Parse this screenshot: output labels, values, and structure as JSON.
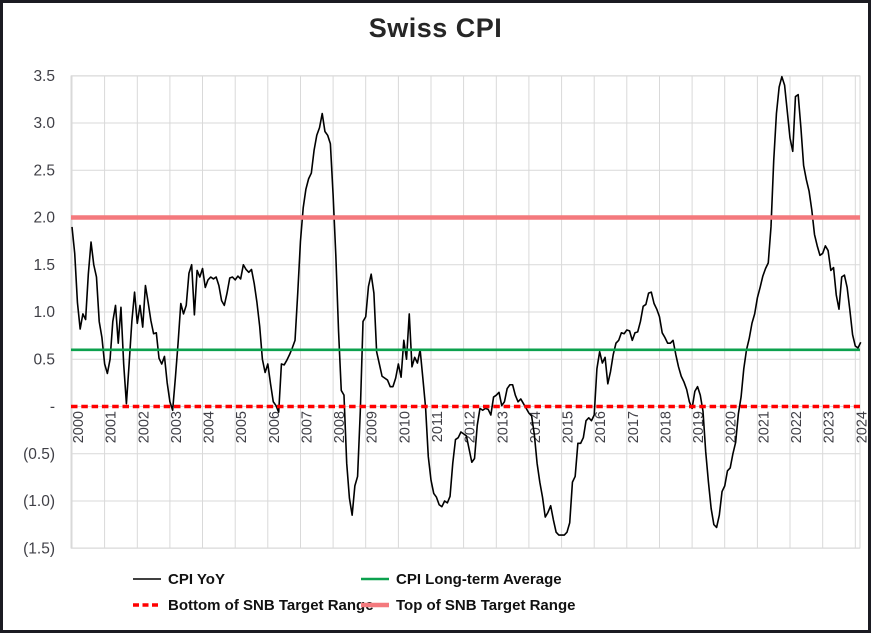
{
  "title": "Swiss CPI",
  "chart_data": {
    "type": "line",
    "title": "Swiss CPI",
    "grid": true,
    "colors": {
      "series": "#000000",
      "long_term_average": "#0CA14E",
      "snb_bottom": "#FF0000",
      "snb_top": "#F4797D",
      "gridline": "#D9D9D9",
      "axis_text": "#3F3F46",
      "title_text": "#262626",
      "frame_border": "#1B1B22"
    },
    "y_axis": {
      "min": -1.5,
      "max": 3.5,
      "step": 0.5,
      "tick_labels": [
        "3.5",
        "3.0",
        "2.5",
        "2.0",
        "1.5",
        "1.0",
        "0.5",
        "-",
        "(0.5)",
        "(1.0)",
        "(1.5)"
      ],
      "tick_values": [
        3.5,
        3.0,
        2.5,
        2.0,
        1.5,
        1.0,
        0.5,
        0.0,
        -0.5,
        -1.0,
        -1.5
      ]
    },
    "x_axis": {
      "tick_labels": [
        "2000",
        "2001",
        "2002",
        "2003",
        "2004",
        "2005",
        "2006",
        "2007",
        "2008",
        "2009",
        "2010",
        "2011",
        "2012",
        "2013",
        "2014",
        "2015",
        "2016",
        "2017",
        "2018",
        "2019",
        "2020",
        "2021",
        "2022",
        "2023",
        "2024"
      ],
      "points_per_tick": 12
    },
    "reference_lines": [
      {
        "name": "CPI Long-term Average",
        "value": 0.6,
        "color": "#0CA14E",
        "style": "solid",
        "width": 2.6
      },
      {
        "name": "Top of SNB Target Range",
        "value": 2.0,
        "color": "#F4797D",
        "style": "solid",
        "width": 4.4
      },
      {
        "name": "Bottom of SNB Target Range",
        "value": 0.0,
        "color": "#FF0000",
        "style": "dashed",
        "width": 3.6
      }
    ],
    "series": [
      {
        "name": "CPI YoY",
        "color": "#000000",
        "width": 1.6,
        "start_year": 2000,
        "frequency": "monthly",
        "values": [
          1.9,
          1.62,
          1.1,
          0.82,
          0.98,
          0.92,
          1.4,
          1.74,
          1.5,
          1.37,
          0.9,
          0.73,
          0.45,
          0.35,
          0.5,
          0.9,
          1.07,
          0.67,
          1.05,
          0.45,
          0.03,
          0.45,
          0.9,
          1.21,
          0.88,
          1.07,
          0.84,
          1.28,
          1.1,
          0.91,
          0.77,
          0.78,
          0.51,
          0.45,
          0.53,
          0.25,
          0.05,
          -0.04,
          0.3,
          0.67,
          1.09,
          0.98,
          1.07,
          1.41,
          1.5,
          0.97,
          1.44,
          1.37,
          1.46,
          1.26,
          1.34,
          1.37,
          1.35,
          1.37,
          1.28,
          1.12,
          1.07,
          1.2,
          1.36,
          1.37,
          1.34,
          1.38,
          1.35,
          1.5,
          1.45,
          1.42,
          1.45,
          1.3,
          1.1,
          0.85,
          0.5,
          0.36,
          0.45,
          0.24,
          0.05,
          0.01,
          -0.06,
          0.45,
          0.44,
          0.49,
          0.55,
          0.62,
          0.7,
          1.2,
          1.75,
          2.1,
          2.3,
          2.41,
          2.47,
          2.71,
          2.87,
          2.95,
          3.1,
          2.91,
          2.87,
          2.78,
          2.24,
          1.6,
          0.8,
          0.17,
          0.12,
          -0.6,
          -0.97,
          -1.15,
          -0.84,
          -0.74,
          -0.05,
          0.9,
          0.95,
          1.27,
          1.4,
          1.2,
          0.58,
          0.45,
          0.32,
          0.3,
          0.28,
          0.21,
          0.21,
          0.3,
          0.45,
          0.31,
          0.7,
          0.5,
          0.98,
          0.42,
          0.52,
          0.46,
          0.6,
          0.3,
          -0.01,
          -0.53,
          -0.78,
          -0.92,
          -0.96,
          -1.04,
          -1.06,
          -1.0,
          -1.02,
          -0.95,
          -0.6,
          -0.35,
          -0.33,
          -0.27,
          -0.29,
          -0.31,
          -0.45,
          -0.59,
          -0.55,
          -0.2,
          -0.02,
          -0.04,
          -0.02,
          -0.03,
          -0.09,
          0.1,
          0.12,
          0.15,
          0.01,
          0.05,
          0.19,
          0.23,
          0.23,
          0.12,
          0.05,
          0.08,
          0.03,
          -0.02,
          -0.07,
          -0.1,
          -0.3,
          -0.6,
          -0.8,
          -0.96,
          -1.17,
          -1.12,
          -1.05,
          -1.2,
          -1.33,
          -1.36,
          -1.36,
          -1.36,
          -1.33,
          -1.23,
          -0.8,
          -0.74,
          -0.39,
          -0.39,
          -0.33,
          -0.15,
          -0.12,
          -0.15,
          -0.09,
          0.4,
          0.58,
          0.46,
          0.52,
          0.24,
          0.37,
          0.55,
          0.67,
          0.7,
          0.78,
          0.77,
          0.81,
          0.8,
          0.7,
          0.78,
          0.79,
          0.9,
          1.06,
          1.08,
          1.2,
          1.21,
          1.09,
          1.03,
          0.95,
          0.78,
          0.73,
          0.67,
          0.67,
          0.7,
          0.55,
          0.42,
          0.32,
          0.26,
          0.18,
          0.05,
          -0.02,
          0.16,
          0.21,
          0.12,
          -0.05,
          -0.48,
          -0.8,
          -1.08,
          -1.25,
          -1.28,
          -1.15,
          -0.9,
          -0.84,
          -0.68,
          -0.65,
          -0.5,
          -0.38,
          -0.08,
          0.1,
          0.4,
          0.6,
          0.72,
          0.88,
          0.98,
          1.15,
          1.26,
          1.38,
          1.46,
          1.52,
          1.9,
          2.6,
          3.1,
          3.38,
          3.49,
          3.4,
          3.12,
          2.84,
          2.7,
          3.28,
          3.3,
          2.95,
          2.55,
          2.4,
          2.28,
          2.08,
          1.82,
          1.7,
          1.6,
          1.62,
          1.7,
          1.65,
          1.44,
          1.47,
          1.18,
          1.03,
          1.37,
          1.39,
          1.26,
          1.02,
          0.76,
          0.64,
          0.62,
          0.68
        ]
      }
    ],
    "legend": [
      {
        "label": "CPI YoY",
        "color": "#000000",
        "style": "thin",
        "width": 1.6
      },
      {
        "label": "CPI Long-term Average",
        "color": "#0CA14E",
        "style": "solid",
        "width": 2.6
      },
      {
        "label": "Bottom of SNB Target Range",
        "color": "#FF0000",
        "style": "dashed",
        "width": 3.6
      },
      {
        "label": "Top of SNB Target Range",
        "color": "#F4797D",
        "style": "solid",
        "width": 4.4
      }
    ]
  }
}
